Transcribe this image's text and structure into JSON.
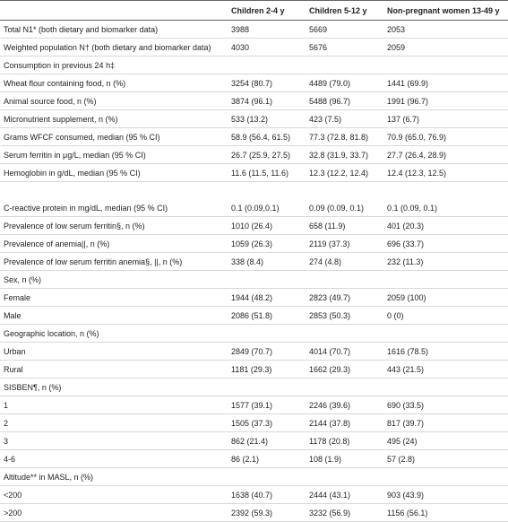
{
  "table": {
    "header": [
      "Children 2-4 y",
      "Children 5-12 y",
      "Non-pregnant women 13-49 y"
    ],
    "rows": [
      {
        "label": "Total N1* (both dietary and biomarker data)",
        "values": [
          "3988",
          "5669",
          "2053"
        ]
      },
      {
        "label": "Weighted population N† (both dietary and biomarker data)",
        "values": [
          "4030",
          "5676",
          "2059"
        ]
      },
      {
        "label": "Consumption in previous 24 h‡"
      },
      {
        "label": "Wheat flour containing food, n (%)",
        "values": [
          "3254 (80.7)",
          "4489 (79.0)",
          "1441 (69.9)"
        ]
      },
      {
        "label": "Animal source food, n (%)",
        "values": [
          "3874 (96.1)",
          "5488 (96.7)",
          "1991 (96.7)"
        ]
      },
      {
        "label": "Micronutrient supplement, n (%)",
        "values": [
          "533 (13.2)",
          "423 (7.5)",
          "137 (6.7)"
        ]
      },
      {
        "label": "Grams WFCF consumed, median (95 % CI)",
        "values": [
          "58.9 (56.4, 61.5)",
          "77.3 (72.8, 81.8)",
          "70.9 (65.0, 76.9)"
        ]
      },
      {
        "label": "Serum ferritin in μg/L, median (95 % CI)",
        "values": [
          "26.7 (25.9, 27.5)",
          "32.8 (31.9, 33.7)",
          "27.7 (26.4, 28.9)"
        ]
      },
      {
        "label": "Hemoglobin in g/dL, median (95 % CI)",
        "values": [
          "11.6 (11.5, 11.6)",
          "12.3 (12.2, 12.4)",
          "12.4 (12.3, 12.5)"
        ]
      },
      {
        "label": "C-reactive protein in mg/dL, median (95 % CI)",
        "values": [
          "0.1 (0.09,0.1)",
          "0.09 (0.09, 0.1)",
          "0.1 (0.09, 0.1)"
        ]
      },
      {
        "label": "Prevalence of low serum ferritin§, n (%)",
        "values": [
          "1010 (26.4)",
          "658 (11.9)",
          "401 (20.3)"
        ]
      },
      {
        "label": "Prevalence of anemia||, n (%)",
        "values": [
          "1059 (26.3)",
          "2119 (37.3)",
          "696 (33.7)"
        ]
      },
      {
        "label": "Prevalence of low serum ferritin anemia§, ||, n (%)",
        "values": [
          "338 (8.4)",
          "274 (4.8)",
          "232 (11.3)"
        ]
      },
      {
        "label": "Sex, n (%)"
      },
      {
        "label": "Female",
        "values": [
          "1944 (48.2)",
          "2823 (49.7)",
          "2059 (100)"
        ]
      },
      {
        "label": "Male",
        "values": [
          "2086 (51.8)",
          "2853 (50.3)",
          "0 (0)"
        ]
      },
      {
        "label": "Geographic location, n (%)"
      },
      {
        "label": "Urban",
        "values": [
          "2849 (70.7)",
          "4014 (70.7)",
          "1616 (78.5)"
        ]
      },
      {
        "label": "Rural",
        "values": [
          "1181 (29.3)",
          "1662 (29.3)",
          "443 (21.5)"
        ]
      },
      {
        "label": "SISBEN¶, n (%)"
      },
      {
        "label": "1",
        "values": [
          "1577 (39.1)",
          "2246 (39.6)",
          "690 (33.5)"
        ]
      },
      {
        "label": "2",
        "values": [
          "1505 (37.3)",
          "2144 (37.8)",
          "817 (39.7)"
        ]
      },
      {
        "label": "3",
        "values": [
          "862 (21.4)",
          "1178 (20.8)",
          "495 (24)"
        ]
      },
      {
        "label": "4-6",
        "values": [
          "86 (2.1)",
          "108 (1.9)",
          "57 (2.8)"
        ]
      },
      {
        "label": "Altitude** in MASL, n (%)"
      },
      {
        "label": "<200",
        "values": [
          "1638 (40.7)",
          "2444 (43.1)",
          "903 (43.9)"
        ]
      },
      {
        "label": ">200",
        "values": [
          "2392 (59.3)",
          "3232 (56.9)",
          "1156 (56.1)"
        ]
      }
    ]
  }
}
